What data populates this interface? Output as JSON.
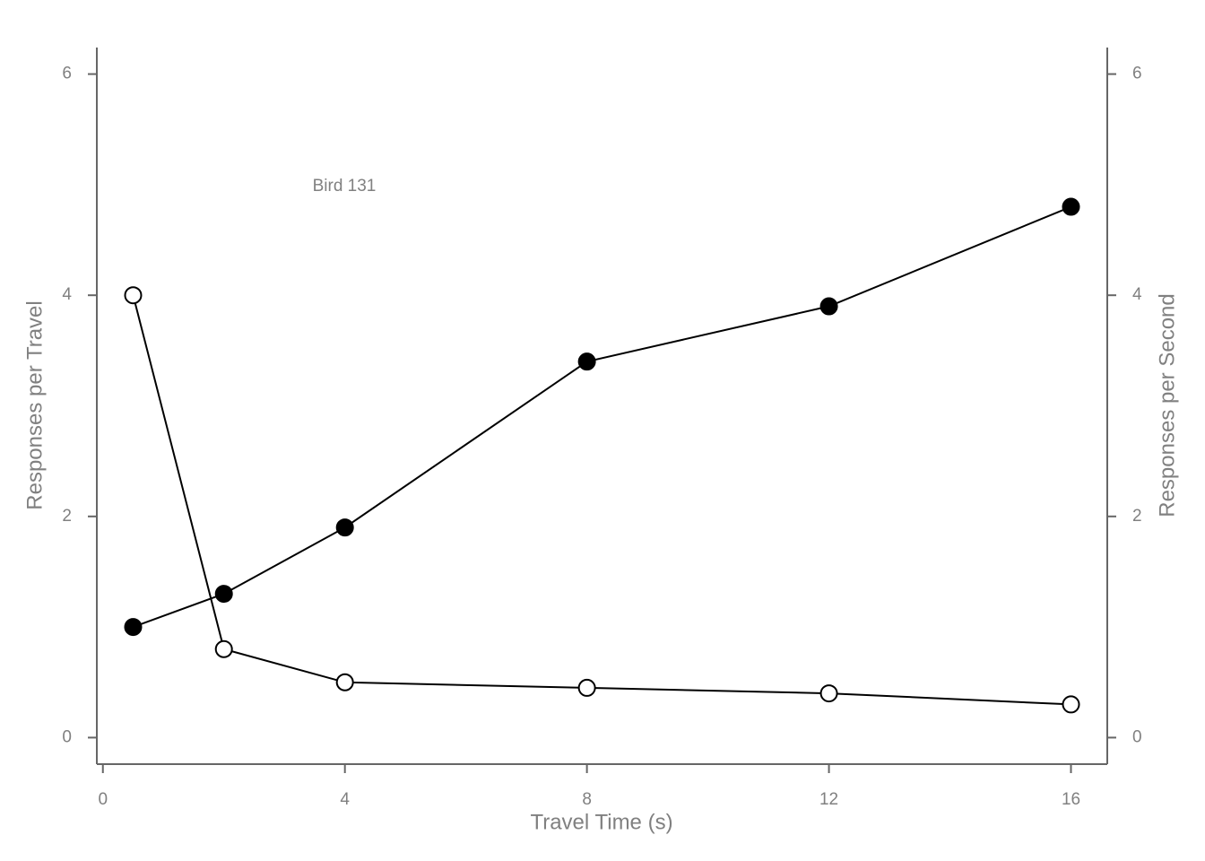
{
  "chart_data": {
    "type": "line",
    "annotation": "Bird 131",
    "x_label": "Travel Time (s)",
    "y_label": "Responses per Travel",
    "y2_label": "Responses per Second",
    "x": [
      0.5,
      2,
      4,
      8,
      12,
      16
    ],
    "series": [
      {
        "color": "#000000",
        "marker": "filled",
        "values": [
          1.0,
          1.3,
          1.9,
          3.4,
          3.9,
          4.8
        ]
      },
      {
        "color": "#000000",
        "marker": "open",
        "axis": "y2",
        "values": [
          4.0,
          0.8,
          0.5,
          0.45,
          0.4,
          0.3
        ]
      }
    ],
    "xlim": [
      -0.1,
      16.6
    ],
    "xticks": [
      0,
      4,
      8,
      12,
      16
    ],
    "ylim": [
      -0.24,
      6.24
    ],
    "yticks": [
      0,
      2,
      4,
      6
    ],
    "y2lim": [
      -0.24,
      6.24
    ],
    "y2ticks": [
      0,
      2,
      4,
      6
    ],
    "grid": false
  }
}
